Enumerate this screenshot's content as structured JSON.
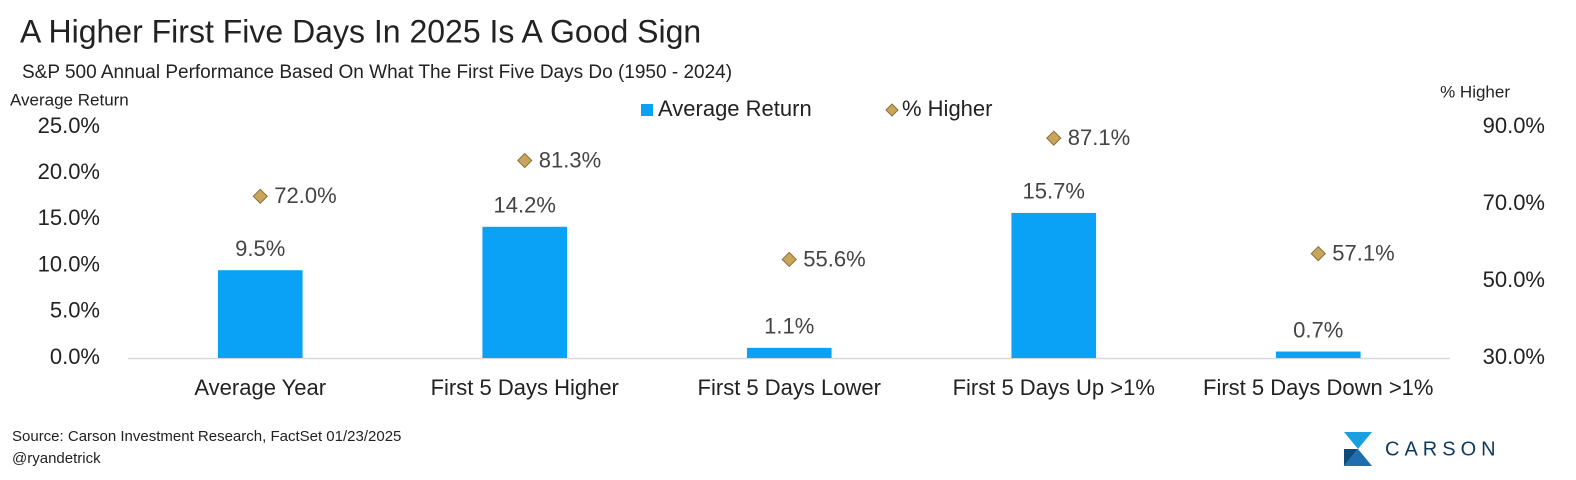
{
  "chart_data": {
    "type": "bar",
    "title": "A Higher First Five Days In 2025 Is A Good Sign",
    "subtitle": "S&P 500 Annual Performance Based On What The First Five Days Do (1950 - 2024)",
    "y_label": "Average Return",
    "y2_label": "% Higher",
    "categories": [
      "Average Year",
      "First 5 Days Higher",
      "First 5 Days Lower",
      "First 5 Days Up >1%",
      "First 5 Days Down >1%"
    ],
    "series": [
      {
        "name": "Average Return",
        "type": "bar",
        "color": "#0aa2f7",
        "values": [
          9.5,
          14.2,
          1.1,
          15.7,
          0.7
        ],
        "value_labels": [
          "9.5%",
          "14.2%",
          "1.1%",
          "15.7%",
          "0.7%"
        ]
      },
      {
        "name": "% Higher",
        "type": "diamond",
        "axis": "y2",
        "color": "#c9a55b",
        "values": [
          72.0,
          81.3,
          55.6,
          87.1,
          57.1
        ],
        "value_labels": [
          "72.0%",
          "81.3%",
          "55.6%",
          "87.1%",
          "57.1%"
        ]
      }
    ],
    "ylim": [
      0,
      25
    ],
    "yticks": [
      {
        "value": 0,
        "label": "0.0%"
      },
      {
        "value": 5,
        "label": "5.0%"
      },
      {
        "value": 10,
        "label": "10.0%"
      },
      {
        "value": 15,
        "label": "15.0%"
      },
      {
        "value": 20,
        "label": "20.0%"
      },
      {
        "value": 25,
        "label": "25.0%"
      }
    ],
    "y2lim": [
      30,
      90
    ],
    "y2ticks": [
      {
        "value": 30,
        "label": "30.0%"
      },
      {
        "value": 50,
        "label": "50.0%"
      },
      {
        "value": 70,
        "label": "70.0%"
      },
      {
        "value": 90,
        "label": "90.0%"
      }
    ],
    "grid": false,
    "legend": "top",
    "source": "Source: Carson Investment Research, FactSet 01/23/2025",
    "note": "@ryandetrick",
    "logo": "CARSON"
  }
}
